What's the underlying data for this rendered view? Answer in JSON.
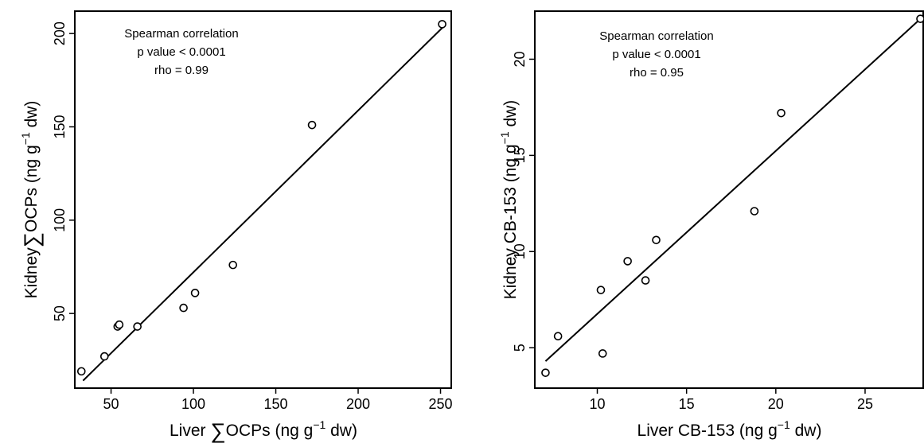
{
  "chart_data": [
    {
      "type": "scatter",
      "xlabel": {
        "prefix": "Liver ",
        "symbol": "∑",
        "mid": "OCPs (ng g",
        "sup": "−1",
        "suffix": " dw)"
      },
      "ylabel": {
        "prefix": "Kidney",
        "symbol": "∑",
        "mid": "OCPs (ng g",
        "sup": "−1",
        "suffix": " dw)"
      },
      "xlim": [
        28,
        257
      ],
      "ylim": [
        10,
        212
      ],
      "xticks": [
        50,
        100,
        150,
        200,
        250
      ],
      "yticks": [
        50,
        100,
        150,
        200
      ],
      "annotation": [
        "Spearman correlation",
        "p value < 0.0001",
        "rho = 0.99"
      ],
      "points": [
        {
          "x": 32,
          "y": 19
        },
        {
          "x": 46,
          "y": 27
        },
        {
          "x": 54,
          "y": 43
        },
        {
          "x": 55,
          "y": 44
        },
        {
          "x": 66,
          "y": 43
        },
        {
          "x": 94,
          "y": 53
        },
        {
          "x": 101,
          "y": 61
        },
        {
          "x": 124,
          "y": 76
        },
        {
          "x": 172,
          "y": 151
        },
        {
          "x": 251,
          "y": 205
        }
      ],
      "fit_line": {
        "x": [
          33,
          251
        ],
        "y": [
          14,
          203
        ]
      }
    },
    {
      "type": "scatter",
      "xlabel": {
        "prefix": "Liver CB-153 (ng g",
        "sup": "−1",
        "suffix": " dw)"
      },
      "ylabel": {
        "prefix": "Kidney CB-153 (ng g",
        "sup": "−1",
        "suffix": " dw)"
      },
      "xlim": [
        6.5,
        28.3
      ],
      "ylim": [
        2.9,
        22.5
      ],
      "xticks": [
        10,
        15,
        20,
        25
      ],
      "yticks": [
        5,
        10,
        15,
        20
      ],
      "annotation": [
        "Spearman correlation",
        "p value < 0.0001",
        "rho = 0.95"
      ],
      "points": [
        {
          "x": 7.1,
          "y": 3.7
        },
        {
          "x": 7.8,
          "y": 5.6
        },
        {
          "x": 10.2,
          "y": 8.0
        },
        {
          "x": 10.3,
          "y": 4.7
        },
        {
          "x": 11.7,
          "y": 9.5
        },
        {
          "x": 12.7,
          "y": 8.5
        },
        {
          "x": 13.3,
          "y": 10.6
        },
        {
          "x": 18.8,
          "y": 12.1
        },
        {
          "x": 20.3,
          "y": 17.2
        },
        {
          "x": 28.1,
          "y": 22.1
        }
      ],
      "fit_line": {
        "x": [
          7.1,
          28.1
        ],
        "y": [
          4.3,
          22.1
        ]
      }
    }
  ]
}
